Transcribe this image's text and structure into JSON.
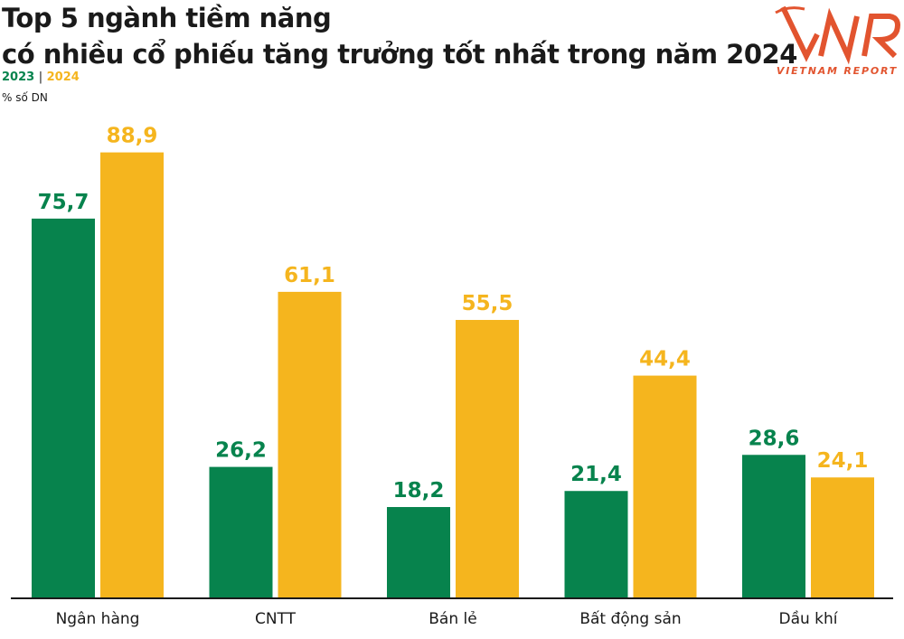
{
  "title_line1": "Top 5 ngành tiềm năng",
  "title_line2": "có nhiều cổ phiếu tăng trưởng tốt nhất trong năm 2024",
  "legend_2023": "2023",
  "legend_sep": "|",
  "legend_2024": "2024",
  "unit": "% số DN",
  "logo_text": "VNR",
  "logo_sub": "VIETNAM REPORT",
  "colors": {
    "series_2023": "#07834d",
    "series_2024": "#f5b51e",
    "brand": "#e2542f"
  },
  "chart_data": {
    "type": "bar",
    "categories": [
      "Ngân hàng",
      "CNTT",
      "Bán lẻ",
      "Bất động sản",
      "Dầu khí"
    ],
    "series": [
      {
        "name": "2023",
        "values": [
          75.7,
          26.2,
          18.2,
          21.4,
          28.6
        ],
        "labels": [
          "75,7",
          "26,2",
          "18,2",
          "21,4",
          "28,6"
        ]
      },
      {
        "name": "2024",
        "values": [
          88.9,
          61.1,
          55.5,
          44.4,
          24.1
        ],
        "labels": [
          "88,9",
          "61,1",
          "55,5",
          "44,4",
          "24,1"
        ]
      }
    ],
    "ylabel": "% số DN",
    "ylim": [
      0,
      100
    ],
    "grid": false,
    "legend": "top-left"
  }
}
